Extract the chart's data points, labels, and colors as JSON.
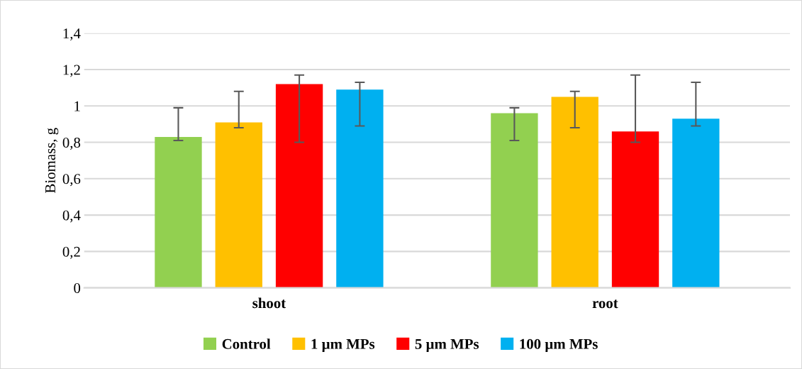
{
  "chart_data": {
    "type": "bar",
    "ylabel": "Biomass, g",
    "categories": [
      "shoot",
      "root"
    ],
    "series": [
      {
        "name": "Control",
        "color": "#92d050",
        "values": [
          0.83,
          0.96
        ],
        "errors": [
          [
            0.81,
            0.99
          ],
          [
            0.81,
            0.99
          ]
        ]
      },
      {
        "name": "1 µm MPs",
        "color": "#ffc000",
        "values": [
          0.91,
          1.05
        ],
        "errors": [
          [
            0.88,
            1.08
          ],
          [
            0.88,
            1.08
          ]
        ]
      },
      {
        "name": "5 µm MPs",
        "color": "#ff0000",
        "values": [
          1.12,
          0.86
        ],
        "errors": [
          [
            0.8,
            1.17
          ],
          [
            0.8,
            1.17
          ]
        ]
      },
      {
        "name": "100 µm MPs",
        "color": "#00b0f0",
        "values": [
          1.09,
          0.93
        ],
        "errors": [
          [
            0.89,
            1.13
          ],
          [
            0.89,
            1.13
          ]
        ]
      }
    ],
    "ylim": [
      0,
      1.4
    ],
    "yticks": [
      {
        "value": 0,
        "label": "0"
      },
      {
        "value": 0.2,
        "label": "0,2"
      },
      {
        "value": 0.4,
        "label": "0,4"
      },
      {
        "value": 0.6,
        "label": "0,6"
      },
      {
        "value": 0.8,
        "label": "0,8"
      },
      {
        "value": 1,
        "label": "1"
      },
      {
        "value": 1.2,
        "label": "1,2"
      },
      {
        "value": 1.4,
        "label": "1,4"
      }
    ],
    "grid": "y",
    "legend": "bottom"
  }
}
